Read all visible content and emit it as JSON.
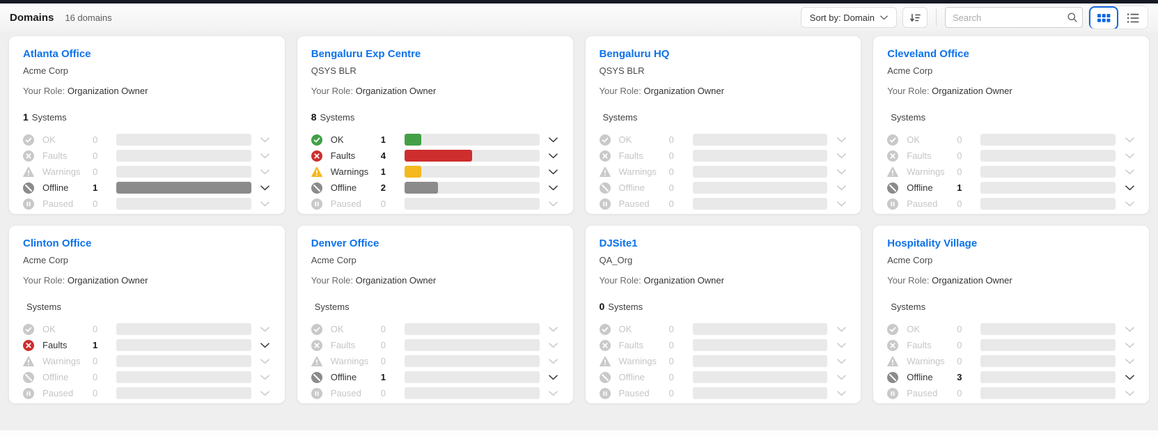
{
  "header": {
    "title": "Domains",
    "count_label": "16 domains",
    "sort_label": "Sort by: Domain",
    "search_placeholder": "Search"
  },
  "icons": {
    "sort_chevron": "chevron-down",
    "sort_order": "arrow-down-with-lines",
    "search": "magnifier",
    "grid_view": "grid-of-squares",
    "list_view": "bulleted-list"
  },
  "status_colors": {
    "ok": "#43a047",
    "faults": "#ce2e2e",
    "warnings": "#f5b91e",
    "offline": "#8b8b8b",
    "paused": "#9e9e9e",
    "disabled": "#c9c9c9",
    "track": "#e9e9e9",
    "accent_blue": "#1268e0"
  },
  "cards": [
    {
      "name": "Atlanta Office",
      "org": "Acme Corp",
      "role_label": "Your Role:",
      "role": "Organization Owner",
      "systems_count": "1",
      "systems_label": "Systems",
      "statuses": [
        {
          "key": "ok",
          "label": "OK",
          "count": 0
        },
        {
          "key": "faults",
          "label": "Faults",
          "count": 0
        },
        {
          "key": "warnings",
          "label": "Warnings",
          "count": 0
        },
        {
          "key": "offline",
          "label": "Offline",
          "count": 1
        },
        {
          "key": "paused",
          "label": "Paused",
          "count": 0
        }
      ]
    },
    {
      "name": "Bengaluru Exp Centre",
      "org": "QSYS BLR",
      "role_label": "Your Role:",
      "role": "Organization Owner",
      "systems_count": "8",
      "systems_label": "Systems",
      "statuses": [
        {
          "key": "ok",
          "label": "OK",
          "count": 1
        },
        {
          "key": "faults",
          "label": "Faults",
          "count": 4
        },
        {
          "key": "warnings",
          "label": "Warnings",
          "count": 1
        },
        {
          "key": "offline",
          "label": "Offline",
          "count": 2
        },
        {
          "key": "paused",
          "label": "Paused",
          "count": 0
        }
      ]
    },
    {
      "name": "Bengaluru HQ",
      "org": "QSYS BLR",
      "role_label": "Your Role:",
      "role": "Organization Owner",
      "systems_count": "",
      "systems_label": "Systems",
      "statuses": [
        {
          "key": "ok",
          "label": "OK",
          "count": 0
        },
        {
          "key": "faults",
          "label": "Faults",
          "count": 0
        },
        {
          "key": "warnings",
          "label": "Warnings",
          "count": 0
        },
        {
          "key": "offline",
          "label": "Offline",
          "count": 0
        },
        {
          "key": "paused",
          "label": "Paused",
          "count": 0
        }
      ]
    },
    {
      "name": "Cleveland Office",
      "org": "Acme Corp",
      "role_label": "Your Role:",
      "role": "Organization Owner",
      "systems_count": "",
      "systems_label": "Systems",
      "statuses": [
        {
          "key": "ok",
          "label": "OK",
          "count": 0
        },
        {
          "key": "faults",
          "label": "Faults",
          "count": 0
        },
        {
          "key": "warnings",
          "label": "Warnings",
          "count": 0
        },
        {
          "key": "offline",
          "label": "Offline",
          "count": 1
        },
        {
          "key": "paused",
          "label": "Paused",
          "count": 0
        }
      ]
    },
    {
      "name": "Clinton Office",
      "org": "Acme Corp",
      "role_label": "Your Role:",
      "role": "Organization Owner",
      "systems_count": "",
      "systems_label": "Systems",
      "statuses": [
        {
          "key": "ok",
          "label": "OK",
          "count": 0
        },
        {
          "key": "faults",
          "label": "Faults",
          "count": 1
        },
        {
          "key": "warnings",
          "label": "Warnings",
          "count": 0
        },
        {
          "key": "offline",
          "label": "Offline",
          "count": 0
        },
        {
          "key": "paused",
          "label": "Paused",
          "count": 0
        }
      ]
    },
    {
      "name": "Denver Office",
      "org": "Acme Corp",
      "role_label": "Your Role:",
      "role": "Organization Owner",
      "systems_count": "",
      "systems_label": "Systems",
      "statuses": [
        {
          "key": "ok",
          "label": "OK",
          "count": 0
        },
        {
          "key": "faults",
          "label": "Faults",
          "count": 0
        },
        {
          "key": "warnings",
          "label": "Warnings",
          "count": 0
        },
        {
          "key": "offline",
          "label": "Offline",
          "count": 1
        },
        {
          "key": "paused",
          "label": "Paused",
          "count": 0
        }
      ]
    },
    {
      "name": "DJSite1",
      "org": "QA_Org",
      "role_label": "Your Role:",
      "role": "Organization Owner",
      "systems_count": "0",
      "systems_label": "Systems",
      "statuses": [
        {
          "key": "ok",
          "label": "OK",
          "count": 0
        },
        {
          "key": "faults",
          "label": "Faults",
          "count": 0
        },
        {
          "key": "warnings",
          "label": "Warnings",
          "count": 0
        },
        {
          "key": "offline",
          "label": "Offline",
          "count": 0
        },
        {
          "key": "paused",
          "label": "Paused",
          "count": 0
        }
      ]
    },
    {
      "name": "Hospitality Village",
      "org": "Acme Corp",
      "role_label": "Your Role:",
      "role": "Organization Owner",
      "systems_count": "",
      "systems_label": "Systems",
      "statuses": [
        {
          "key": "ok",
          "label": "OK",
          "count": 0
        },
        {
          "key": "faults",
          "label": "Faults",
          "count": 0
        },
        {
          "key": "warnings",
          "label": "Warnings",
          "count": 0
        },
        {
          "key": "offline",
          "label": "Offline",
          "count": 3
        },
        {
          "key": "paused",
          "label": "Paused",
          "count": 0
        }
      ]
    }
  ]
}
